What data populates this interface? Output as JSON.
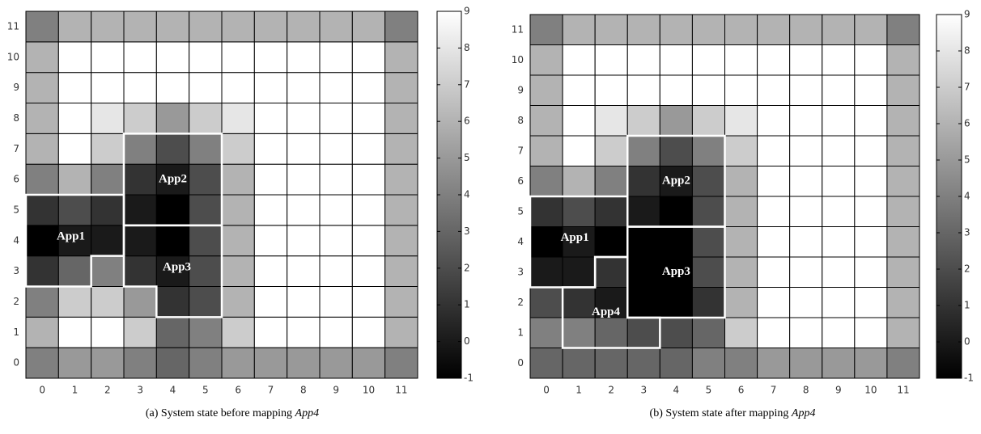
{
  "chart_data": [
    {
      "type": "heatmap",
      "xticks": [
        0,
        1,
        2,
        3,
        4,
        5,
        6,
        7,
        8,
        9,
        10,
        11
      ],
      "yticks": [
        0,
        1,
        2,
        3,
        4,
        5,
        6,
        7,
        8,
        9,
        10,
        11
      ],
      "xlim": [
        -0.5,
        11.5
      ],
      "ylim": [
        -0.5,
        11.5
      ],
      "values": [
        [
          4,
          5,
          5,
          4,
          3,
          4,
          5,
          5,
          5,
          5,
          5,
          4
        ],
        [
          6,
          9,
          9,
          7,
          3,
          4,
          7,
          9,
          9,
          9,
          9,
          6
        ],
        [
          4,
          7,
          7,
          5,
          1,
          2,
          6,
          9,
          9,
          9,
          9,
          6
        ],
        [
          1,
          3,
          4,
          1,
          0,
          2,
          6,
          9,
          9,
          9,
          9,
          6
        ],
        [
          -1,
          0,
          0,
          0,
          -1,
          2,
          6,
          9,
          9,
          9,
          9,
          6
        ],
        [
          1,
          2,
          1,
          0,
          -1,
          2,
          6,
          9,
          9,
          9,
          9,
          6
        ],
        [
          4,
          6,
          4,
          1,
          0,
          2,
          6,
          9,
          9,
          9,
          9,
          6
        ],
        [
          6,
          9,
          7,
          4,
          2,
          4,
          7,
          9,
          9,
          9,
          9,
          6
        ],
        [
          6,
          9,
          8,
          7,
          5,
          7,
          8,
          9,
          9,
          9,
          9,
          6
        ],
        [
          6,
          9,
          9,
          9,
          9,
          9,
          9,
          9,
          9,
          9,
          9,
          6
        ],
        [
          6,
          9,
          9,
          9,
          9,
          9,
          9,
          9,
          9,
          9,
          9,
          6
        ],
        [
          4,
          6,
          6,
          6,
          6,
          6,
          6,
          6,
          6,
          6,
          6,
          4
        ]
      ],
      "clim": [
        -1,
        9
      ],
      "cticks": [
        -1,
        0,
        1,
        2,
        3,
        4,
        5,
        6,
        7,
        8,
        9
      ],
      "regions": [
        {
          "label": "App1",
          "cells": [
            [
              0,
              5
            ],
            [
              1,
              5
            ],
            [
              2,
              5
            ],
            [
              0,
              4
            ],
            [
              1,
              4
            ],
            [
              2,
              4
            ],
            [
              0,
              3
            ],
            [
              1,
              3
            ]
          ]
        },
        {
          "label": "App2",
          "cells": [
            [
              3,
              7
            ],
            [
              4,
              7
            ],
            [
              5,
              7
            ],
            [
              3,
              6
            ],
            [
              4,
              6
            ],
            [
              5,
              6
            ],
            [
              3,
              5
            ],
            [
              4,
              5
            ],
            [
              5,
              5
            ]
          ]
        },
        {
          "label": "App3",
          "cells": [
            [
              3,
              4
            ],
            [
              4,
              4
            ],
            [
              5,
              4
            ],
            [
              3,
              3
            ],
            [
              4,
              3
            ],
            [
              5,
              3
            ],
            [
              4,
              2
            ],
            [
              5,
              2
            ]
          ]
        }
      ],
      "caption": {
        "text": "(a) System state before mapping",
        "emphasis": "App4"
      }
    },
    {
      "type": "heatmap",
      "xticks": [
        0,
        1,
        2,
        3,
        4,
        5,
        6,
        7,
        8,
        9,
        10,
        11
      ],
      "yticks": [
        0,
        1,
        2,
        3,
        4,
        5,
        6,
        7,
        8,
        9,
        10,
        11
      ],
      "xlim": [
        -0.5,
        11.5
      ],
      "ylim": [
        -0.5,
        11.5
      ],
      "values": [
        [
          3,
          3,
          3,
          3,
          3,
          4,
          4,
          5,
          5,
          5,
          5,
          4
        ],
        [
          4,
          4,
          3,
          2,
          2,
          3,
          7,
          9,
          9,
          9,
          9,
          6
        ],
        [
          2,
          1,
          0,
          -1,
          -1,
          1,
          6,
          9,
          9,
          9,
          9,
          6
        ],
        [
          0,
          0,
          1,
          -1,
          -1,
          2,
          6,
          9,
          9,
          9,
          9,
          6
        ],
        [
          -1,
          0,
          -1,
          -1,
          -1,
          2,
          6,
          9,
          9,
          9,
          9,
          6
        ],
        [
          1,
          2,
          1,
          0,
          -1,
          2,
          6,
          9,
          9,
          9,
          9,
          6
        ],
        [
          4,
          6,
          4,
          1,
          0,
          2,
          6,
          9,
          9,
          9,
          9,
          6
        ],
        [
          6,
          9,
          7,
          4,
          2,
          4,
          7,
          9,
          9,
          9,
          9,
          6
        ],
        [
          6,
          9,
          8,
          7,
          5,
          7,
          8,
          9,
          9,
          9,
          9,
          6
        ],
        [
          6,
          9,
          9,
          9,
          9,
          9,
          9,
          9,
          9,
          9,
          9,
          6
        ],
        [
          6,
          9,
          9,
          9,
          9,
          9,
          9,
          9,
          9,
          9,
          9,
          6
        ],
        [
          4,
          6,
          6,
          6,
          6,
          6,
          6,
          6,
          6,
          6,
          6,
          4
        ]
      ],
      "clim": [
        -1,
        9
      ],
      "cticks": [
        -1,
        0,
        1,
        2,
        3,
        4,
        5,
        6,
        7,
        8,
        9
      ],
      "regions": [
        {
          "label": "App1",
          "cells": [
            [
              0,
              5
            ],
            [
              1,
              5
            ],
            [
              2,
              5
            ],
            [
              0,
              4
            ],
            [
              1,
              4
            ],
            [
              2,
              4
            ],
            [
              0,
              3
            ],
            [
              1,
              3
            ]
          ]
        },
        {
          "label": "App2",
          "cells": [
            [
              3,
              7
            ],
            [
              4,
              7
            ],
            [
              5,
              7
            ],
            [
              3,
              6
            ],
            [
              4,
              6
            ],
            [
              5,
              6
            ],
            [
              3,
              5
            ],
            [
              4,
              5
            ],
            [
              5,
              5
            ]
          ]
        },
        {
          "label": "App3",
          "cells": [
            [
              3,
              4
            ],
            [
              4,
              4
            ],
            [
              5,
              4
            ],
            [
              3,
              3
            ],
            [
              4,
              3
            ],
            [
              5,
              3
            ],
            [
              3,
              2
            ],
            [
              4,
              2
            ],
            [
              5,
              2
            ]
          ]
        },
        {
          "label": "App4",
          "cells": [
            [
              2,
              3
            ],
            [
              1,
              2
            ],
            [
              2,
              2
            ],
            [
              1,
              1
            ],
            [
              2,
              1
            ],
            [
              3,
              1
            ]
          ]
        }
      ],
      "caption": {
        "text": "(b) System state after mapping",
        "emphasis": "App4"
      }
    }
  ]
}
